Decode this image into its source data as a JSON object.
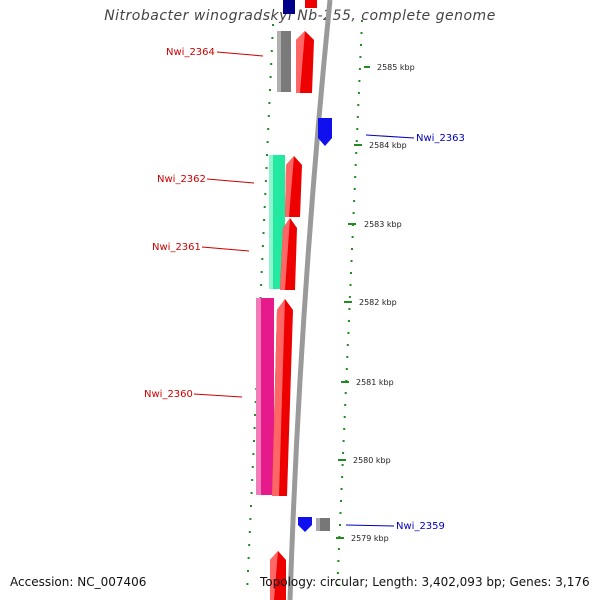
{
  "title": "Nitrobacter winogradskyi Nb-255, complete genome",
  "footer": {
    "accession": "Accession: NC_007406",
    "topology": "Topology: circular; Length: 3,402,093 bp; Genes: 3,176"
  },
  "colors": {
    "forward_gene": "#ee0000",
    "gene_label_left": "#cc0000",
    "gene_label_right": "#0000bb",
    "tick_green": "#228b22",
    "backbone": "#9a9a9a",
    "grey_gene": "#777777",
    "teal_gene": "#22e8a0",
    "magenta_gene": "#e61a8a",
    "blue_gene": "#1010ee",
    "navy_gene": "#000088"
  },
  "kbp_labels": [
    "2585 kbp",
    "2584 kbp",
    "2583 kbp",
    "2582 kbp",
    "2581 kbp",
    "2580 kbp",
    "2579 kbp"
  ],
  "gene_labels": [
    "Nwi_2364",
    "Nwi_2363",
    "Nwi_2362",
    "Nwi_2361",
    "Nwi_2360",
    "Nwi_2359"
  ]
}
